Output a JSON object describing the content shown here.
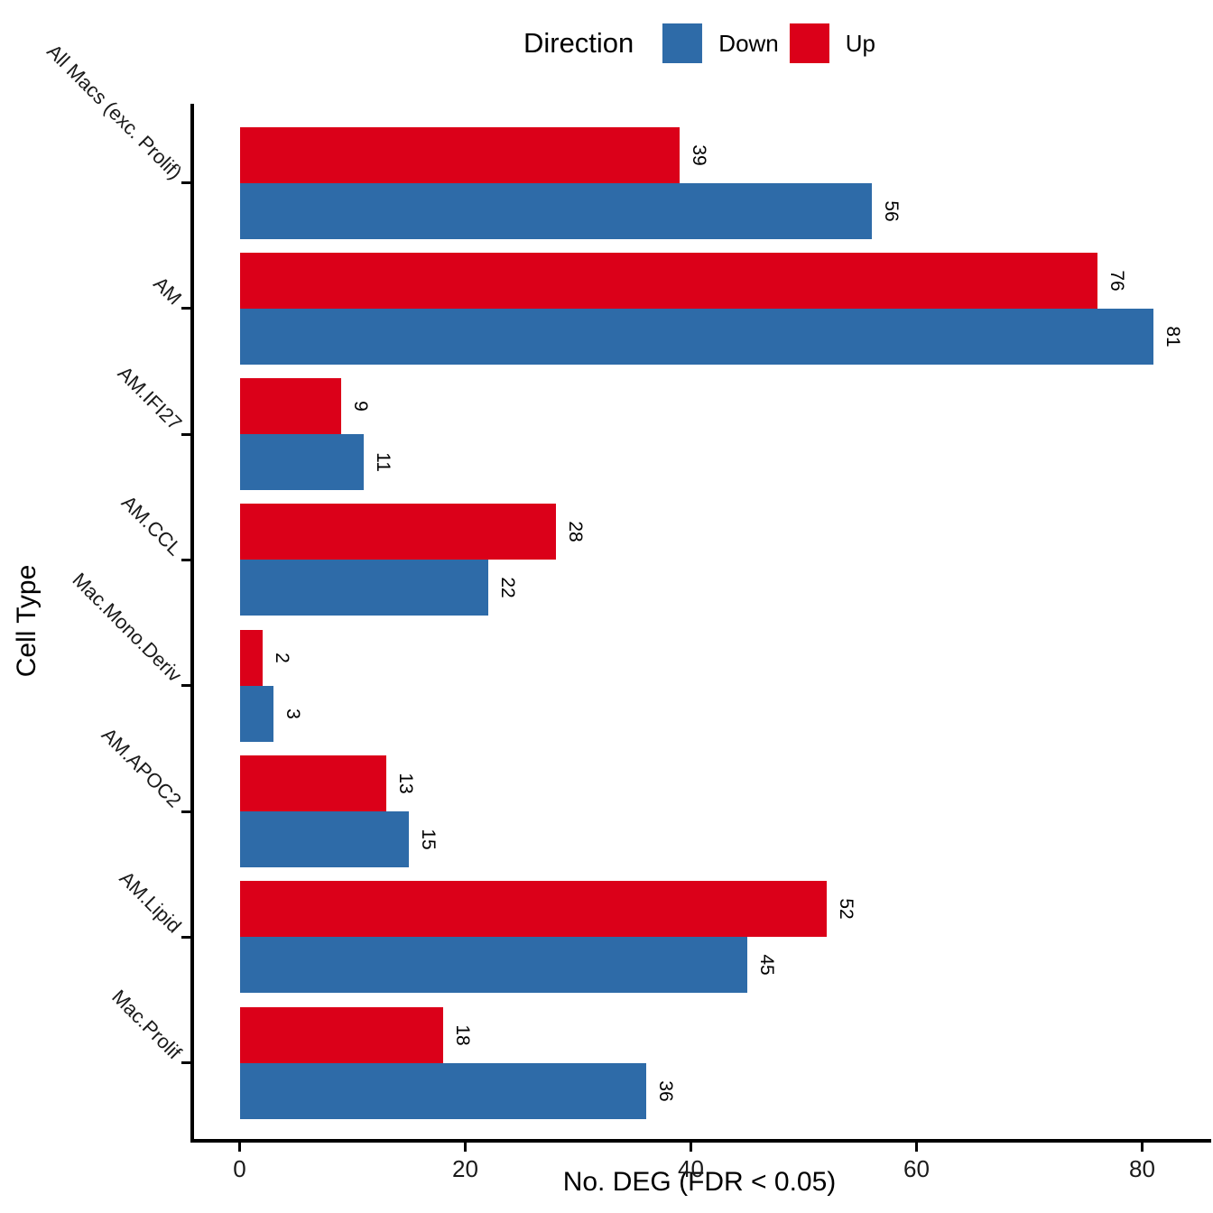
{
  "legend": {
    "title": "Direction",
    "items": [
      {
        "label": "Down",
        "color": "#2E6BA8"
      },
      {
        "label": "Up",
        "color": "#DB0019"
      }
    ]
  },
  "axes": {
    "x_title": "No. DEG (FDR < 0.05)",
    "y_title": "Cell Type"
  },
  "chart_data": {
    "type": "bar",
    "orientation": "horizontal",
    "title": "",
    "xlabel": "No. DEG (FDR < 0.05)",
    "ylabel": "Cell Type",
    "categories": [
      "All Macs (exc. Prolif)",
      "AM",
      "AM.IFI27",
      "AM.CCL",
      "Mac.Mono.Deriv",
      "AM.APOC2",
      "AM.Lipid",
      "Mac.Prolif"
    ],
    "series": [
      {
        "name": "Up",
        "color": "#DB0019",
        "values": [
          39,
          76,
          9,
          28,
          2,
          13,
          52,
          18
        ]
      },
      {
        "name": "Down",
        "color": "#2E6BA8",
        "values": [
          56,
          81,
          11,
          22,
          3,
          15,
          45,
          36
        ]
      }
    ],
    "x_ticks": [
      0,
      20,
      40,
      60,
      80
    ],
    "xlim": [
      0,
      86
    ],
    "bar_value_labels": true,
    "legend_position": "top",
    "legend_order": [
      "Down",
      "Up"
    ],
    "grid": false
  }
}
